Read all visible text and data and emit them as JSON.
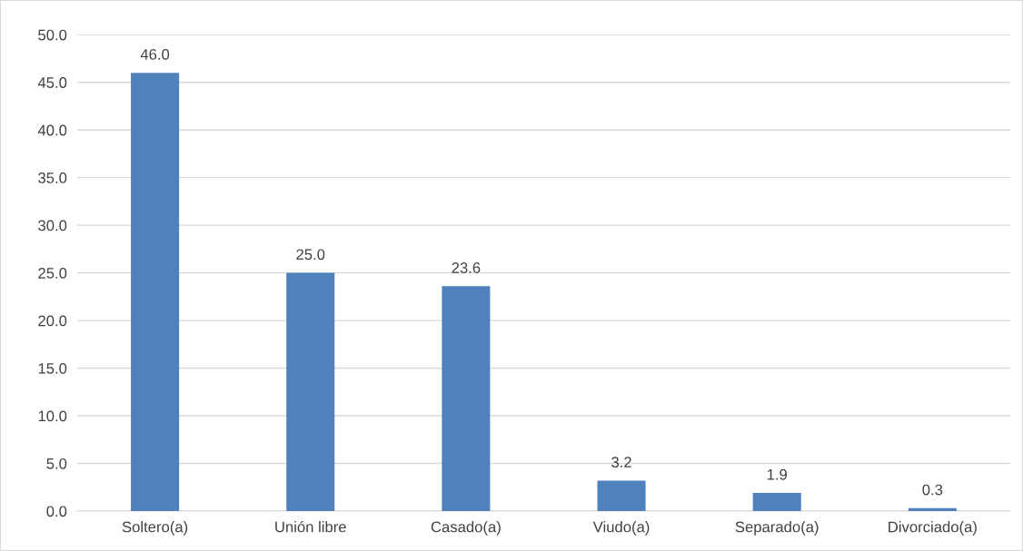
{
  "chart_data": {
    "type": "bar",
    "categories": [
      "Soltero(a)",
      "Unión libre",
      "Casado(a)",
      "Viudo(a)",
      "Separado(a)",
      "Divorciado(a)"
    ],
    "values": [
      46.0,
      25.0,
      23.6,
      3.2,
      1.9,
      0.3
    ],
    "value_labels": [
      "46.0",
      "25.0",
      "23.6",
      "3.2",
      "1.9",
      "0.3"
    ],
    "color": "#4f81bd",
    "ylim": [
      0,
      50
    ],
    "yticks": [
      {
        "value": 0,
        "label": "0.0"
      },
      {
        "value": 5,
        "label": "5.0"
      },
      {
        "value": 10,
        "label": "10.0"
      },
      {
        "value": 15,
        "label": "15.0"
      },
      {
        "value": 20,
        "label": "20.0"
      },
      {
        "value": 25,
        "label": "25.0"
      },
      {
        "value": 30,
        "label": "30.0"
      },
      {
        "value": 35,
        "label": "35.0"
      },
      {
        "value": 40,
        "label": "40.0"
      },
      {
        "value": 45,
        "label": "45.0"
      },
      {
        "value": 50,
        "label": "50.0"
      }
    ],
    "grid": "y",
    "legend": false
  }
}
